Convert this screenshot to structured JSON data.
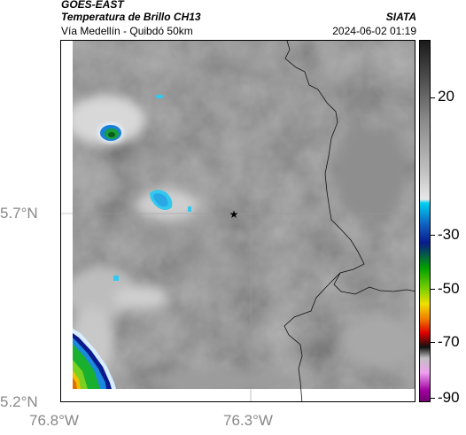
{
  "header": {
    "satellite": "GOES-EAST",
    "product": "Temperatura de Brillo CH13",
    "route": "Vía Medellín - Quibdó 50km",
    "organization": "SIATA",
    "datetime": "2024-06-02 01:19"
  },
  "map": {
    "lat_labels": [
      "5.7°N",
      "5.2°N"
    ],
    "lon_labels": [
      "76.8°W",
      "76.3°W"
    ],
    "marker": "star-icon"
  },
  "colorbar": {
    "tick_labels": [
      "20",
      "-30",
      "-50",
      "-70",
      "-90"
    ],
    "colors": [
      "#2a2a2a",
      "#bdbdbd",
      "#00c8e0",
      "#0a1a8c",
      "#00a000",
      "#f0e000",
      "#e00000",
      "#101010",
      "#e0a0e0",
      "#a000a0"
    ]
  }
}
